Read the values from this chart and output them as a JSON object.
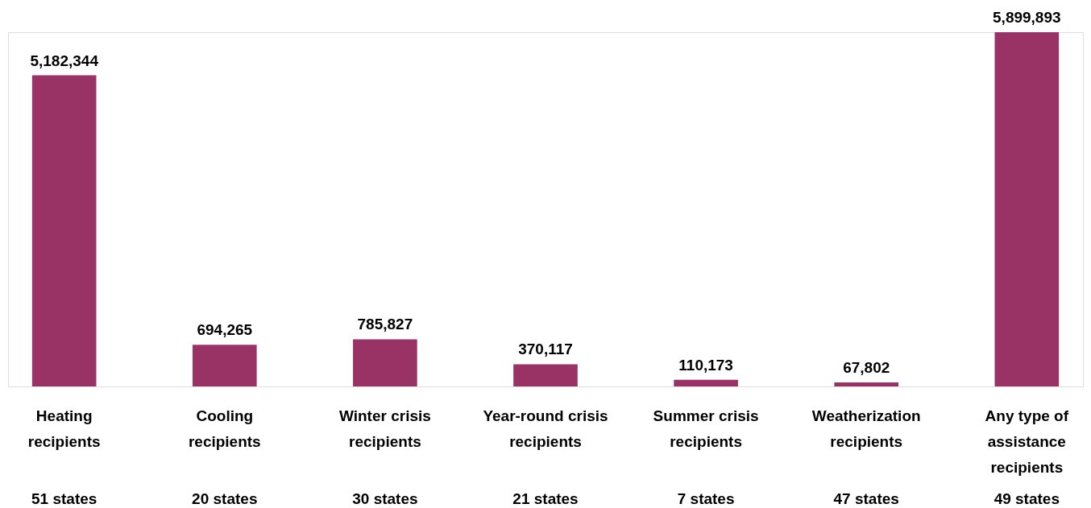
{
  "chart_data": {
    "type": "bar",
    "categories": [
      "Heating recipients",
      "Cooling recipients",
      "Winter crisis recipients",
      "Year-round crisis recipients",
      "Summer crisis recipients",
      "Weatherization recipients",
      "Any type of assistance recipients"
    ],
    "values": [
      5182344,
      694265,
      785827,
      370117,
      110173,
      67802,
      5899893
    ],
    "value_labels": [
      "5,182,344",
      "694,265",
      "785,827",
      "370,117",
      "110,173",
      "67,802",
      "5,899,893"
    ],
    "color": "#993366",
    "annotations": [
      "51 states",
      "20 states",
      "30 states",
      "21 states",
      "7 states",
      "47 states",
      "49 states"
    ]
  }
}
